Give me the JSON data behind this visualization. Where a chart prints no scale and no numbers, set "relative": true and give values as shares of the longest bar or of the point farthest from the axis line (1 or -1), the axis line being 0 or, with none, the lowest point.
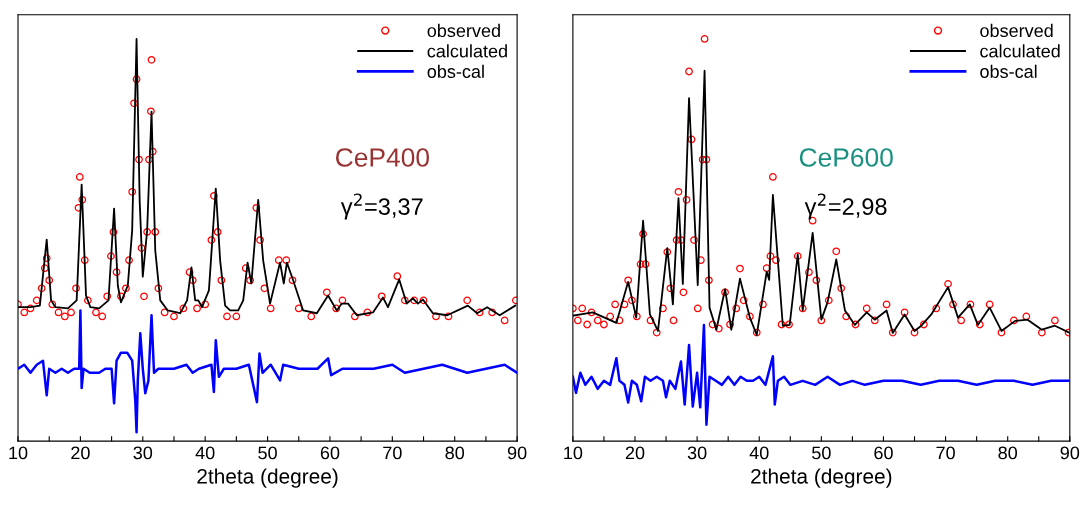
{
  "chart_data": [
    {
      "type": "line",
      "relative": true,
      "xlabel": "2theta (degree)",
      "xlim": [
        10,
        90
      ],
      "xticks": [
        10,
        {
          "value": 15,
          "label": null
        },
        20,
        {
          "value": 25,
          "label": null
        },
        30,
        {
          "value": 35,
          "label": null
        },
        40,
        {
          "value": 45,
          "label": null
        },
        50,
        {
          "value": 55,
          "label": null
        },
        60,
        {
          "value": 65,
          "label": null
        },
        70,
        {
          "value": 75,
          "label": null
        },
        80,
        {
          "value": 85,
          "label": null
        },
        90
      ],
      "tick_labels": "x",
      "grid": false,
      "legend": "top right",
      "annotations": [
        "CeP400",
        "γ$^{2}$=3,37"
      ],
      "series": [
        {
          "name": "observed",
          "type": "scatter",
          "marker": "circle",
          "color": "#ff0000",
          "x": [
            10,
            11,
            12,
            13,
            13.8,
            14.3,
            14.6,
            15,
            15.5,
            16.5,
            17.5,
            18.5,
            19.3,
            19.7,
            19.9,
            20.3,
            20.7,
            21.2,
            22.5,
            23.5,
            24.3,
            24.9,
            25.3,
            25.8,
            26.5,
            27.3,
            27.8,
            28.3,
            28.6,
            29.0,
            29.4,
            29.8,
            30.2,
            30.7,
            31.0,
            31.3,
            31.4,
            31.6,
            32.0,
            32.5,
            33.5,
            35,
            36.5,
            37.5,
            38,
            38.7,
            40,
            41,
            41.4,
            42,
            42.6,
            43.5,
            45,
            46.5,
            47.2,
            48.2,
            48.8,
            49.5,
            50.5,
            51.8,
            53.0,
            54,
            55,
            57,
            59.5,
            61,
            62,
            64,
            66,
            68.3,
            70.8,
            72,
            73.5,
            75,
            77,
            79,
            82,
            84,
            86,
            88,
            89.8
          ],
          "values": [
            0.34,
            0.32,
            0.33,
            0.35,
            0.38,
            0.43,
            0.455,
            0.4,
            0.34,
            0.32,
            0.31,
            0.32,
            0.38,
            0.58,
            0.657,
            0.6,
            0.45,
            0.35,
            0.32,
            0.31,
            0.36,
            0.46,
            0.52,
            0.42,
            0.36,
            0.38,
            0.45,
            0.62,
            0.84,
            0.9,
            0.7,
            0.48,
            0.36,
            0.52,
            0.7,
            0.82,
            0.948,
            0.72,
            0.52,
            0.38,
            0.32,
            0.31,
            0.33,
            0.42,
            0.4,
            0.33,
            0.34,
            0.5,
            0.61,
            0.52,
            0.4,
            0.31,
            0.31,
            0.43,
            0.4,
            0.58,
            0.5,
            0.38,
            0.33,
            0.45,
            0.45,
            0.4,
            0.33,
            0.31,
            0.37,
            0.33,
            0.35,
            0.31,
            0.32,
            0.36,
            0.41,
            0.35,
            0.35,
            0.35,
            0.31,
            0.31,
            0.35,
            0.32,
            0.32,
            0.3,
            0.35
          ]
        },
        {
          "name": "calculated",
          "color": "#000000",
          "x": [
            10,
            12,
            13.5,
            14.6,
            15.3,
            16,
            18,
            19.4,
            20.2,
            20.9,
            21.6,
            23,
            24.5,
            25.4,
            26.0,
            26.5,
            27.6,
            28.3,
            29.0,
            29.5,
            30.0,
            30.7,
            31.4,
            32.0,
            32.8,
            34,
            36,
            37.1,
            37.8,
            38.4,
            38.9,
            39.5,
            40.6,
            41.7,
            42.4,
            43.2,
            44,
            45.3,
            46.1,
            46.8,
            47.4,
            48.5,
            49.3,
            50.4,
            52.0,
            52.6,
            53.1,
            54.1,
            55.7,
            57.9,
            59.7,
            61.1,
            61.9,
            62.9,
            64.3,
            66.9,
            68.5,
            69.3,
            71.1,
            72.3,
            73.3,
            74.1,
            74.9,
            76.5,
            78.8,
            82.1,
            83.6,
            85.2,
            87.2,
            89.7
          ],
          "values": [
            0.333,
            0.333,
            0.337,
            0.501,
            0.35,
            0.333,
            0.33,
            0.35,
            0.638,
            0.362,
            0.333,
            0.33,
            0.35,
            0.578,
            0.387,
            0.345,
            0.387,
            0.524,
            1.0,
            0.598,
            0.409,
            0.524,
            0.819,
            0.474,
            0.35,
            0.325,
            0.318,
            0.35,
            0.432,
            0.35,
            0.35,
            0.333,
            0.375,
            0.628,
            0.449,
            0.337,
            0.325,
            0.325,
            0.35,
            0.444,
            0.392,
            0.6,
            0.449,
            0.342,
            0.444,
            0.392,
            0.444,
            0.4,
            0.325,
            0.318,
            0.362,
            0.325,
            0.342,
            0.342,
            0.313,
            0.32,
            0.357,
            0.333,
            0.402,
            0.342,
            0.355,
            0.342,
            0.352,
            0.318,
            0.313,
            0.337,
            0.318,
            0.333,
            0.313,
            0.337
          ]
        },
        {
          "name": "obs-cal",
          "color": "#0000ff",
          "x": [
            10,
            11,
            12,
            13,
            14,
            14.6,
            15,
            16,
            17,
            18,
            19,
            19.8,
            20.0,
            20.2,
            20.5,
            21.5,
            23,
            24,
            25.0,
            25.4,
            25.8,
            26.5,
            27.5,
            28.3,
            28.8,
            29.0,
            29.2,
            29.6,
            30.0,
            30.4,
            30.9,
            31.4,
            31.8,
            32.5,
            35,
            37,
            38,
            39,
            41.0,
            41.4,
            41.7,
            42.2,
            43,
            45,
            47,
            48.3,
            48.7,
            49.2,
            50.5,
            52.0,
            52.5,
            55,
            58,
            59.7,
            60.2,
            62,
            65,
            67,
            70,
            72,
            75,
            78,
            80,
            82,
            85,
            88,
            90
          ],
          "values": [
            0.18,
            0.19,
            0.17,
            0.19,
            0.2,
            0.114,
            0.18,
            0.17,
            0.18,
            0.17,
            0.18,
            0.18,
            0.325,
            0.132,
            0.18,
            0.17,
            0.17,
            0.18,
            0.18,
            0.094,
            0.2,
            0.22,
            0.22,
            0.2,
            0.1,
            0.022,
            0.15,
            0.268,
            0.18,
            0.119,
            0.15,
            0.313,
            0.17,
            0.18,
            0.18,
            0.19,
            0.17,
            0.18,
            0.19,
            0.122,
            0.251,
            0.16,
            0.18,
            0.18,
            0.19,
            0.097,
            0.218,
            0.17,
            0.19,
            0.151,
            0.19,
            0.18,
            0.18,
            0.206,
            0.164,
            0.18,
            0.18,
            0.18,
            0.19,
            0.17,
            0.18,
            0.19,
            0.18,
            0.17,
            0.18,
            0.19,
            0.17
          ]
        }
      ]
    },
    {
      "type": "line",
      "relative": true,
      "xlabel": "2theta (degree)",
      "xlim": [
        10,
        90
      ],
      "xticks": [
        10,
        {
          "value": 15,
          "label": null
        },
        20,
        {
          "value": 25,
          "label": null
        },
        30,
        {
          "value": 35,
          "label": null
        },
        40,
        {
          "value": 45,
          "label": null
        },
        50,
        {
          "value": 55,
          "label": null
        },
        60,
        {
          "value": 65,
          "label": null
        },
        70,
        {
          "value": 75,
          "label": null
        },
        80,
        {
          "value": 85,
          "label": null
        },
        90
      ],
      "tick_labels": "x",
      "grid": false,
      "legend": "top right",
      "annotations": [
        "CeP600",
        "γ$^{2}$=2,98"
      ],
      "series": [
        {
          "name": "observed",
          "type": "scatter",
          "marker": "circle",
          "color": "#ff0000",
          "x": [
            10,
            10.8,
            11.5,
            12.3,
            13,
            14,
            15,
            16,
            16.8,
            17.5,
            18.3,
            18.9,
            19.5,
            20.3,
            20.9,
            21.3,
            21.7,
            22.5,
            23.5,
            24.5,
            25.2,
            25.7,
            26.2,
            26.7,
            27.0,
            27.4,
            27.8,
            28.3,
            28.7,
            29.1,
            29.5,
            30.1,
            30.6,
            30.9,
            31.2,
            31.5,
            31.9,
            32.5,
            33.5,
            34.5,
            35.3,
            36.3,
            36.9,
            37.5,
            38.5,
            39.6,
            40.6,
            41.2,
            41.8,
            42.2,
            42.7,
            43.6,
            44.8,
            46.2,
            47.0,
            48.0,
            48.6,
            49.2,
            50.0,
            51.2,
            52.4,
            53.2,
            54,
            55.5,
            57.3,
            58.6,
            60.5,
            61.5,
            63.4,
            65,
            66.5,
            68.5,
            70.4,
            71.2,
            72.5,
            74,
            75.5,
            77.1,
            79,
            81,
            83,
            85.5,
            87.6,
            89.8
          ],
          "values": [
            0.33,
            0.3,
            0.33,
            0.29,
            0.32,
            0.3,
            0.29,
            0.31,
            0.34,
            0.3,
            0.34,
            0.4,
            0.35,
            0.31,
            0.44,
            0.515,
            0.44,
            0.3,
            0.27,
            0.33,
            0.47,
            0.38,
            0.3,
            0.5,
            0.62,
            0.5,
            0.37,
            0.6,
            0.919,
            0.75,
            0.5,
            0.33,
            0.45,
            0.7,
            1.0,
            0.7,
            0.4,
            0.29,
            0.28,
            0.37,
            0.29,
            0.33,
            0.429,
            0.35,
            0.31,
            0.27,
            0.34,
            0.43,
            0.46,
            0.657,
            0.45,
            0.29,
            0.29,
            0.46,
            0.33,
            0.42,
            0.548,
            0.4,
            0.3,
            0.35,
            0.472,
            0.38,
            0.31,
            0.29,
            0.33,
            0.3,
            0.34,
            0.27,
            0.32,
            0.27,
            0.29,
            0.33,
            0.391,
            0.34,
            0.3,
            0.34,
            0.29,
            0.34,
            0.27,
            0.3,
            0.31,
            0.27,
            0.3,
            0.27
          ]
        },
        {
          "name": "calculated",
          "color": "#000000",
          "x": [
            10,
            13.2,
            17.0,
            18.9,
            20.2,
            21.3,
            22.4,
            23.7,
            25.2,
            26.1,
            27.0,
            27.7,
            28.7,
            30.1,
            31.2,
            32.0,
            33.1,
            34.5,
            35.5,
            36.9,
            38.5,
            39.6,
            41.2,
            41.6,
            42.2,
            43.8,
            44.9,
            46.2,
            47.0,
            48.6,
            50.0,
            51.0,
            52.4,
            53.8,
            55.4,
            57.3,
            58.6,
            60.5,
            61.5,
            63.4,
            65.0,
            66.1,
            67.7,
            70.4,
            72.0,
            73.9,
            75.2,
            77.1,
            79.0,
            81.2,
            83.2,
            85.5,
            87.6,
            90
          ],
          "values": [
            0.312,
            0.32,
            0.294,
            0.396,
            0.307,
            0.548,
            0.315,
            0.274,
            0.48,
            0.34,
            0.604,
            0.391,
            0.853,
            0.388,
            0.921,
            0.332,
            0.277,
            0.378,
            0.277,
            0.404,
            0.307,
            0.264,
            0.421,
            0.401,
            0.612,
            0.287,
            0.289,
            0.464,
            0.325,
            0.518,
            0.302,
            0.345,
            0.452,
            0.325,
            0.289,
            0.32,
            0.302,
            0.325,
            0.269,
            0.315,
            0.274,
            0.287,
            0.315,
            0.383,
            0.307,
            0.34,
            0.289,
            0.332,
            0.274,
            0.299,
            0.302,
            0.277,
            0.287,
            0.269
          ]
        },
        {
          "name": "obs-cal",
          "color": "#0000ff",
          "x": [
            10,
            10.5,
            11.2,
            12,
            13,
            14,
            15,
            16,
            17.0,
            17.5,
            18.3,
            18.9,
            19.5,
            20.3,
            21.0,
            21.6,
            22.5,
            23.5,
            24.5,
            25.0,
            25.6,
            26.5,
            27.4,
            28.0,
            28.7,
            29.3,
            30.0,
            30.5,
            31.1,
            31.5,
            32.0,
            33,
            34,
            35,
            36,
            37,
            38,
            39,
            40,
            41,
            42.2,
            42.5,
            43,
            44,
            45,
            47,
            49,
            51,
            53,
            55,
            57,
            60,
            63,
            66,
            69,
            72,
            75,
            78,
            81,
            84,
            87,
            90
          ],
          "values": [
            0.16,
            0.12,
            0.17,
            0.14,
            0.16,
            0.13,
            0.15,
            0.14,
            0.206,
            0.15,
            0.14,
            0.096,
            0.15,
            0.14,
            0.099,
            0.16,
            0.15,
            0.16,
            0.15,
            0.109,
            0.15,
            0.13,
            0.198,
            0.091,
            0.239,
            0.086,
            0.17,
            0.084,
            0.289,
            0.041,
            0.16,
            0.15,
            0.14,
            0.16,
            0.14,
            0.16,
            0.15,
            0.15,
            0.16,
            0.14,
            0.211,
            0.091,
            0.15,
            0.16,
            0.14,
            0.15,
            0.14,
            0.16,
            0.14,
            0.15,
            0.14,
            0.15,
            0.15,
            0.14,
            0.15,
            0.15,
            0.14,
            0.15,
            0.15,
            0.14,
            0.15,
            0.15
          ]
        }
      ]
    }
  ]
}
